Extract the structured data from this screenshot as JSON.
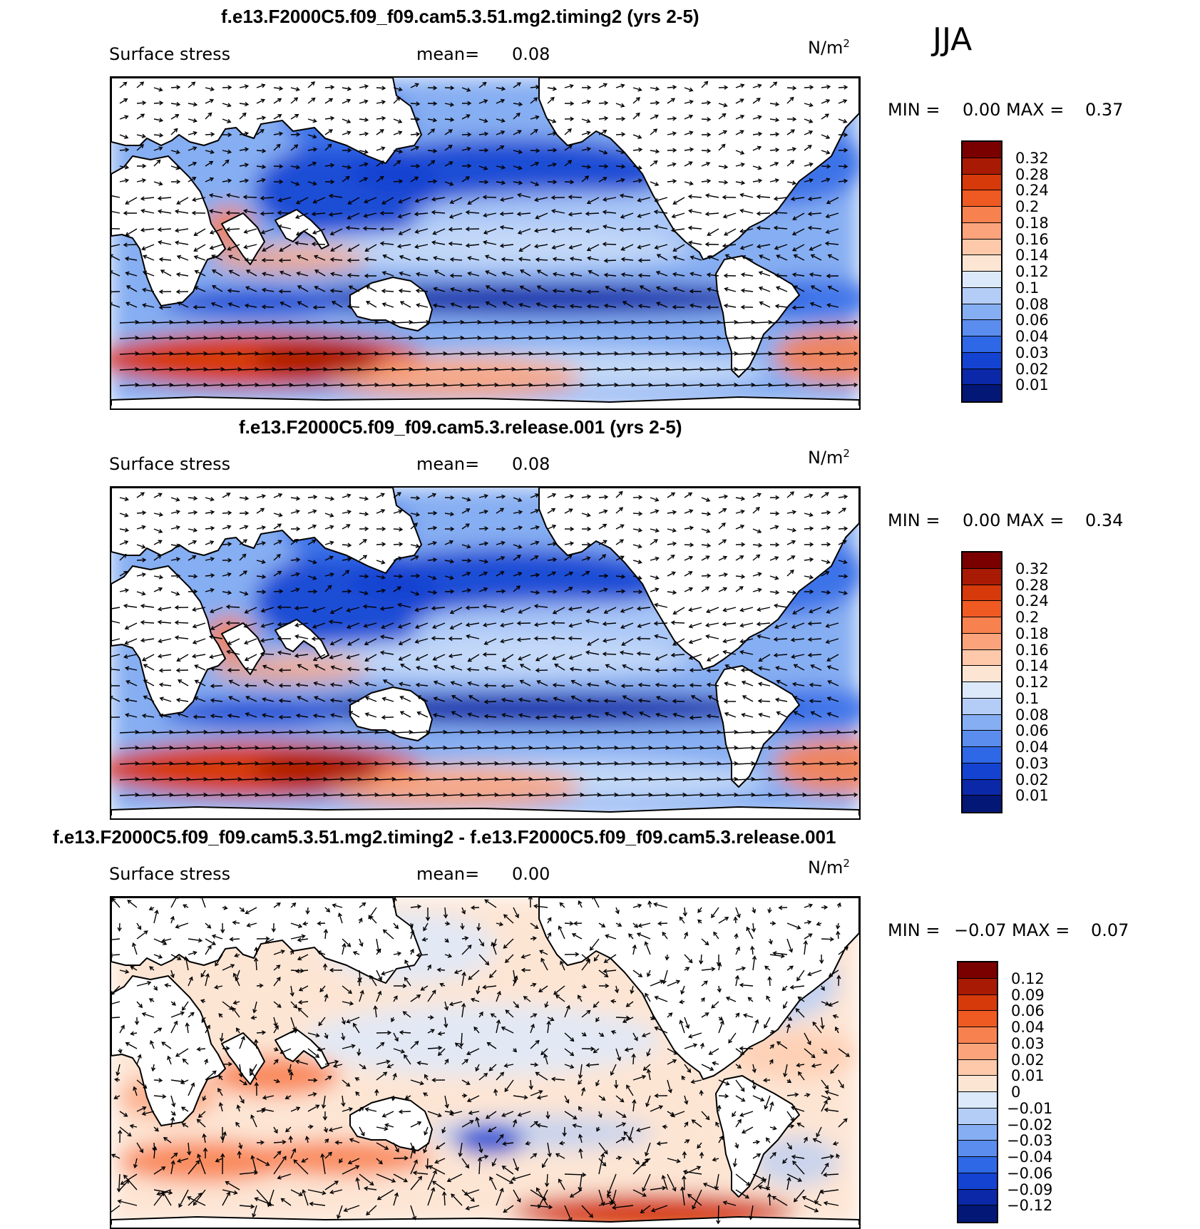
{
  "season": "JJA",
  "panels": [
    {
      "title": "f.e13.F2000C5.f09_f09.cam5.3.51.mg2.timing2 (yrs 2-5)",
      "variable": "Surface stress",
      "mean_label": "mean=",
      "mean_value": "0.08",
      "units": "N/m",
      "units_sup": "2",
      "min_label": "MIN =",
      "min_value": "0.00",
      "max_label": "MAX =",
      "max_value": "0.37",
      "levels": [
        "0.32",
        "0.28",
        "0.24",
        "0.2",
        "0.18",
        "0.16",
        "0.14",
        "0.12",
        "0.1",
        "0.08",
        "0.06",
        "0.04",
        "0.03",
        "0.02",
        "0.01"
      ],
      "colors": [
        "#7a0000",
        "#a91a04",
        "#d63a0b",
        "#ee5a22",
        "#f88150",
        "#fba47c",
        "#fdc9aa",
        "#fde5d4",
        "#dbe9fb",
        "#b3cdf7",
        "#86aef2",
        "#5a8ded",
        "#2f68e6",
        "#1443d2",
        "#0a28a8",
        "#031777"
      ]
    },
    {
      "title": "f.e13.F2000C5.f09_f09.cam5.3.release.001 (yrs 2-5)",
      "variable": "Surface stress",
      "mean_label": "mean=",
      "mean_value": "0.08",
      "units": "N/m",
      "units_sup": "2",
      "min_label": "MIN =",
      "min_value": "0.00",
      "max_label": "MAX =",
      "max_value": "0.34",
      "levels": [
        "0.32",
        "0.28",
        "0.24",
        "0.2",
        "0.18",
        "0.16",
        "0.14",
        "0.12",
        "0.1",
        "0.08",
        "0.06",
        "0.04",
        "0.03",
        "0.02",
        "0.01"
      ],
      "colors": [
        "#7a0000",
        "#a91a04",
        "#d63a0b",
        "#ee5a22",
        "#f88150",
        "#fba47c",
        "#fdc9aa",
        "#fde5d4",
        "#dbe9fb",
        "#b3cdf7",
        "#86aef2",
        "#5a8ded",
        "#2f68e6",
        "#1443d2",
        "#0a28a8",
        "#031777"
      ]
    },
    {
      "title": "f.e13.F2000C5.f09_f09.cam5.3.51.mg2.timing2 - f.e13.F2000C5.f09_f09.cam5.3.release.001",
      "variable": "Surface stress",
      "mean_label": "mean=",
      "mean_value": "0.00",
      "units": "N/m",
      "units_sup": "2",
      "min_label": "MIN =",
      "min_value": "−0.07",
      "max_label": "MAX =",
      "max_value": "0.07",
      "levels": [
        "0.12",
        "0.09",
        "0.06",
        "0.04",
        "0.03",
        "0.02",
        "0.01",
        "0",
        "−0.01",
        "−0.02",
        "−0.03",
        "−0.04",
        "−0.06",
        "−0.09",
        "−0.12"
      ],
      "colors": [
        "#7a0000",
        "#a91a04",
        "#d63a0b",
        "#ee5a22",
        "#f88150",
        "#fba47c",
        "#fdc9aa",
        "#fde5d4",
        "#dbe9fb",
        "#b3cdf7",
        "#86aef2",
        "#5a8ded",
        "#2f68e6",
        "#1443d2",
        "#0a28a8",
        "#031777"
      ]
    }
  ]
}
